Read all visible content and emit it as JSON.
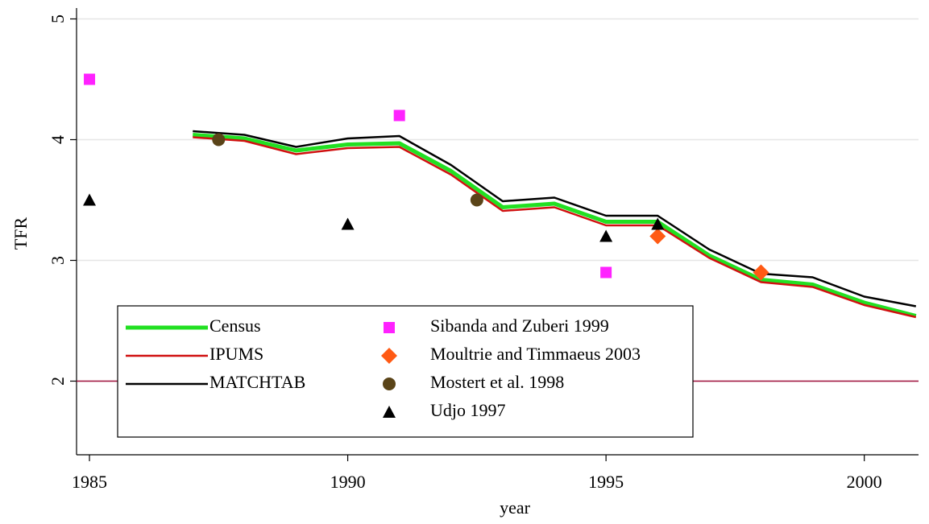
{
  "chart_data": {
    "type": "line",
    "x_label": "year",
    "y_label": "TFR",
    "xlim": [
      1984.75,
      2001.05
    ],
    "ylim": [
      1.39,
      5.09
    ],
    "xticks": [
      1985,
      1990,
      1995,
      2000
    ],
    "yticks": [
      2,
      3,
      4,
      5
    ],
    "grid": true,
    "legend_position": "bottom-left",
    "reference_line": {
      "value": 2,
      "color": "#a0103c"
    },
    "x": [
      1987,
      1988,
      1989,
      1990,
      1991,
      1992,
      1993,
      1994,
      1995,
      1996,
      1997,
      1998,
      1999,
      2000,
      2001
    ],
    "series": [
      {
        "name": "Census",
        "color": "#22e022",
        "width": 5,
        "values": [
          4.04,
          4.01,
          3.91,
          3.96,
          3.97,
          3.74,
          3.44,
          3.47,
          3.32,
          3.32,
          3.04,
          2.84,
          2.8,
          2.65,
          2.54
        ]
      },
      {
        "name": "IPUMS",
        "color": "#d01010",
        "width": 2.5,
        "values": [
          4.02,
          3.99,
          3.88,
          3.93,
          3.94,
          3.71,
          3.41,
          3.44,
          3.29,
          3.29,
          3.02,
          2.82,
          2.78,
          2.63,
          2.53
        ]
      },
      {
        "name": "MATCHTAB",
        "color": "#000000",
        "width": 2.5,
        "values": [
          4.07,
          4.04,
          3.94,
          4.01,
          4.03,
          3.79,
          3.49,
          3.52,
          3.37,
          3.37,
          3.09,
          2.89,
          2.86,
          2.7,
          2.62
        ]
      }
    ],
    "points": [
      {
        "name": "Sibanda and Zuberi 1999",
        "color": "#ff22ff",
        "marker": "square",
        "x": [
          1985,
          1991,
          1995
        ],
        "values": [
          4.5,
          4.2,
          2.9
        ]
      },
      {
        "name": "Moultrie and Timmaeus 2003",
        "color": "#ff5a14",
        "marker": "diamond",
        "x": [
          1996,
          1998
        ],
        "values": [
          3.2,
          2.9
        ]
      },
      {
        "name": "Mostert et al. 1998",
        "color": "#5a4418",
        "marker": "circle",
        "x": [
          1987.5,
          1992.5
        ],
        "values": [
          4.0,
          3.5
        ]
      },
      {
        "name": "Udjo 1997",
        "color": "#000000",
        "marker": "triangle",
        "x": [
          1985,
          1990,
          1995,
          1996
        ],
        "values": [
          3.5,
          3.3,
          3.2,
          3.3
        ]
      }
    ]
  }
}
